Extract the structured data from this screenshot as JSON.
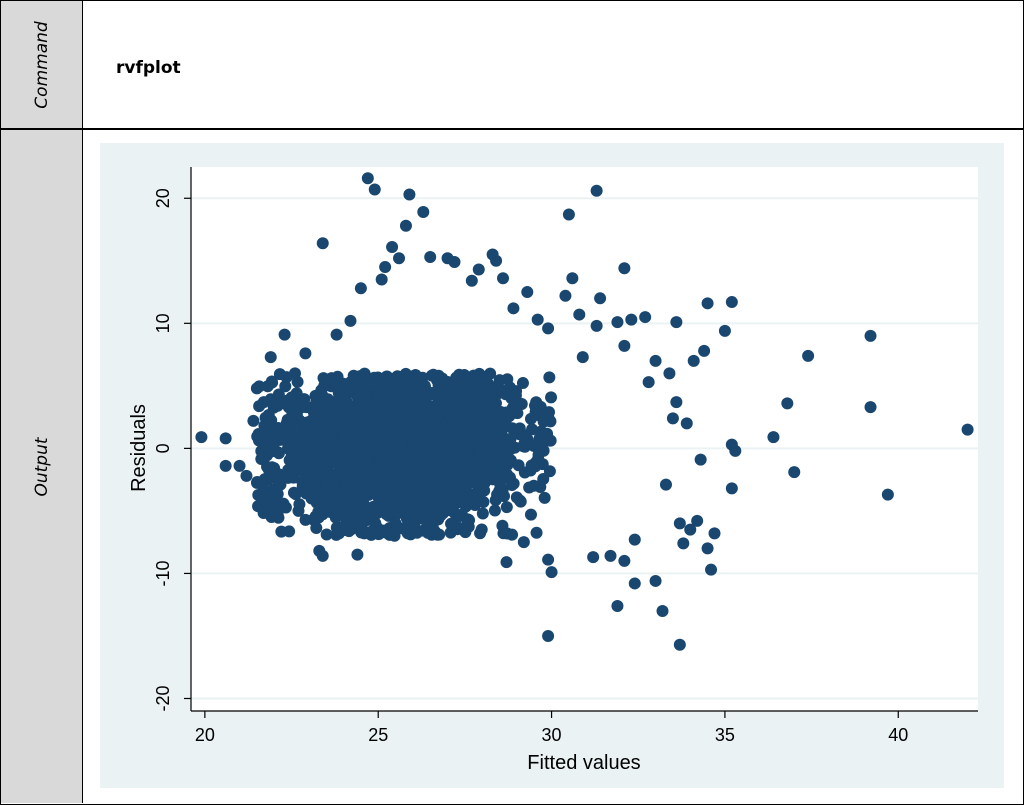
{
  "labels": {
    "command": "Command",
    "output": "Output"
  },
  "command_text": "rvfplot",
  "colors": {
    "graph_bg": "#eaf2f3",
    "plot_bg": "#ffffff",
    "grid": "#eaf2f3",
    "marker": "#1a476f",
    "axis": "#000000"
  },
  "chart_data": {
    "type": "scatter",
    "xlabel": "Fitted values",
    "ylabel": "Residuals",
    "xlim": [
      19.6,
      42.3
    ],
    "ylim": [
      -21,
      22.5
    ],
    "xticks": [
      20,
      25,
      30,
      35,
      40
    ],
    "yticks": [
      -20,
      -10,
      0,
      10,
      20
    ],
    "grid": "horizontal",
    "legend": "none",
    "core_cloud": {
      "description_free": true,
      "x_range": [
        21.5,
        30
      ],
      "y_range": [
        -7,
        6
      ],
      "count": 2600
    },
    "points": [
      [
        19.9,
        0.9
      ],
      [
        20.6,
        0.8
      ],
      [
        20.6,
        -1.4
      ],
      [
        21.0,
        -1.4
      ],
      [
        21.2,
        -2.2
      ],
      [
        21.4,
        2.2
      ],
      [
        21.5,
        4.8
      ],
      [
        21.7,
        3.7
      ],
      [
        21.9,
        7.3
      ],
      [
        21.7,
        -3.3
      ],
      [
        21.9,
        -4.6
      ],
      [
        22.1,
        -5.3
      ],
      [
        22.3,
        9.1
      ],
      [
        22.6,
        6.0
      ],
      [
        22.9,
        7.6
      ],
      [
        22.7,
        -5.0
      ],
      [
        23.3,
        -8.2
      ],
      [
        23.4,
        -8.6
      ],
      [
        23.4,
        16.4
      ],
      [
        23.8,
        9.1
      ],
      [
        24.2,
        10.2
      ],
      [
        24.4,
        -8.5
      ],
      [
        24.5,
        12.8
      ],
      [
        24.7,
        21.6
      ],
      [
        24.9,
        20.7
      ],
      [
        25.1,
        13.5
      ],
      [
        25.2,
        14.5
      ],
      [
        25.4,
        16.1
      ],
      [
        25.6,
        15.2
      ],
      [
        25.8,
        17.8
      ],
      [
        25.9,
        20.3
      ],
      [
        26.3,
        18.9
      ],
      [
        26.5,
        15.3
      ],
      [
        27.0,
        15.2
      ],
      [
        27.2,
        14.9
      ],
      [
        27.7,
        13.4
      ],
      [
        27.9,
        14.3
      ],
      [
        28.3,
        15.5
      ],
      [
        28.4,
        15.0
      ],
      [
        28.6,
        13.6
      ],
      [
        28.9,
        11.2
      ],
      [
        29.3,
        12.5
      ],
      [
        29.6,
        10.3
      ],
      [
        29.9,
        9.6
      ],
      [
        28.7,
        -9.1
      ],
      [
        29.2,
        -7.5
      ],
      [
        29.9,
        -15.0
      ],
      [
        29.9,
        -8.9
      ],
      [
        30.0,
        -9.9
      ],
      [
        30.4,
        12.2
      ],
      [
        30.5,
        18.7
      ],
      [
        30.6,
        13.6
      ],
      [
        30.8,
        10.7
      ],
      [
        30.9,
        7.3
      ],
      [
        31.2,
        -8.7
      ],
      [
        31.3,
        20.6
      ],
      [
        31.3,
        9.8
      ],
      [
        31.4,
        12.0
      ],
      [
        31.7,
        -8.6
      ],
      [
        31.9,
        -12.6
      ],
      [
        31.9,
        10.1
      ],
      [
        32.1,
        8.2
      ],
      [
        32.1,
        14.4
      ],
      [
        32.1,
        -9.0
      ],
      [
        32.3,
        10.3
      ],
      [
        32.4,
        -7.3
      ],
      [
        32.4,
        -10.8
      ],
      [
        32.7,
        10.5
      ],
      [
        32.8,
        5.3
      ],
      [
        33.0,
        7.0
      ],
      [
        33.0,
        -10.6
      ],
      [
        33.2,
        -13.0
      ],
      [
        33.3,
        -2.9
      ],
      [
        33.4,
        6.0
      ],
      [
        33.5,
        2.4
      ],
      [
        33.6,
        10.1
      ],
      [
        33.6,
        3.7
      ],
      [
        33.7,
        -6.0
      ],
      [
        33.7,
        -15.7
      ],
      [
        33.8,
        -7.6
      ],
      [
        33.9,
        2.0
      ],
      [
        34.0,
        -6.5
      ],
      [
        34.1,
        7.0
      ],
      [
        34.2,
        -5.8
      ],
      [
        34.3,
        -0.9
      ],
      [
        34.4,
        7.8
      ],
      [
        34.5,
        11.6
      ],
      [
        34.5,
        -8.0
      ],
      [
        34.6,
        -9.7
      ],
      [
        34.7,
        -6.8
      ],
      [
        35.0,
        9.4
      ],
      [
        35.2,
        11.7
      ],
      [
        35.2,
        -3.2
      ],
      [
        35.2,
        0.3
      ],
      [
        35.3,
        -0.2
      ],
      [
        36.4,
        0.9
      ],
      [
        36.8,
        3.6
      ],
      [
        37.0,
        -1.9
      ],
      [
        37.4,
        7.4
      ],
      [
        39.2,
        9.0
      ],
      [
        39.2,
        3.3
      ],
      [
        39.7,
        -3.7
      ],
      [
        42.0,
        1.5
      ]
    ]
  }
}
